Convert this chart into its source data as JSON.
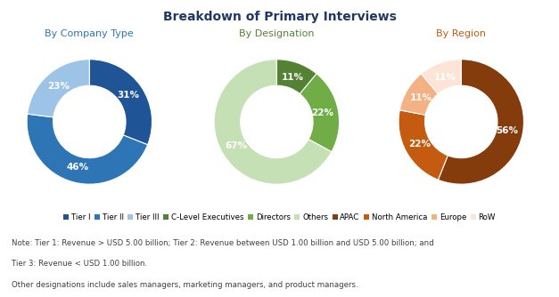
{
  "title": "Breakdown of Primary Interviews",
  "title_color": "#1f3864",
  "title_fontsize": 10,
  "chart1": {
    "subtitle": "By Company Type",
    "subtitle_color": "#2e75b6",
    "values": [
      31,
      46,
      23
    ],
    "labels": [
      "31%",
      "46%",
      "23%"
    ],
    "colors": [
      "#1f5496",
      "#2e75b6",
      "#9dc3e6"
    ],
    "legend_labels": [
      "Tier I",
      "Tier II",
      "Tier III"
    ],
    "startangle": 90,
    "label_colors": [
      "#1f5496",
      "#2e75b6",
      "#7f7f7f"
    ]
  },
  "chart2": {
    "subtitle": "By Designation",
    "subtitle_color": "#548235",
    "values": [
      11,
      22,
      67
    ],
    "labels": [
      "11%",
      "22%",
      "67%"
    ],
    "colors": [
      "#548235",
      "#70ad47",
      "#c5e0b4"
    ],
    "legend_labels": [
      "C-Level Executives",
      "Directors",
      "Others"
    ],
    "startangle": 90,
    "label_colors": [
      "#548235",
      "#548235",
      "#548235"
    ]
  },
  "chart3": {
    "subtitle": "By Region",
    "subtitle_color": "#c55a11",
    "values": [
      56,
      22,
      11,
      11
    ],
    "labels": [
      "56%",
      "22%",
      "11%",
      "11%"
    ],
    "colors": [
      "#843c0c",
      "#c55a11",
      "#f4b183",
      "#fce4d6"
    ],
    "legend_labels": [
      "APAC",
      "North America",
      "Europe",
      "RoW"
    ],
    "startangle": 90,
    "label_colors": [
      "#843c0c",
      "#843c0c",
      "#843c0c",
      "#7f7f7f"
    ]
  },
  "note_line1": "Note: Tier 1: Revenue > USD 5.00 billion; Tier 2: Revenue between USD 1.00 billion and USD 5.00 billion; and",
  "note_line2": "Tier 3: Revenue < USD 1.00 billion.",
  "note_line3": "Other designations include sales managers, marketing managers, and product managers.",
  "background_color": "#ffffff",
  "wedge_linewidth": 0.8,
  "wedge_edgecolor": "#ffffff"
}
